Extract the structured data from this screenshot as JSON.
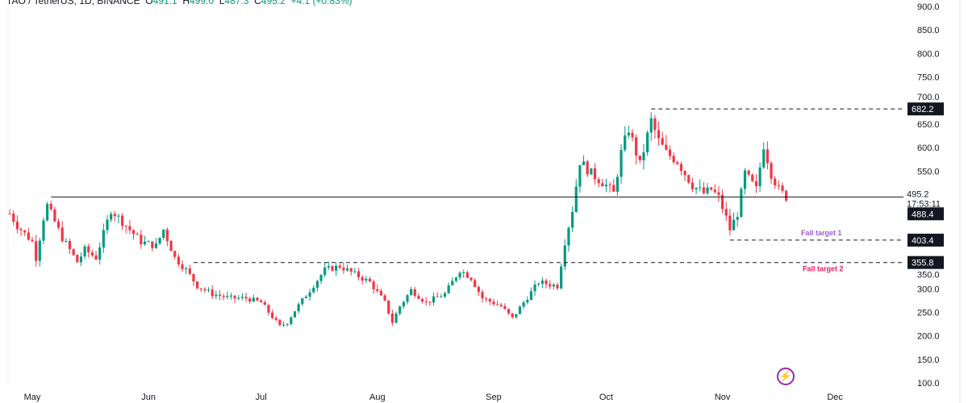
{
  "legend": {
    "symbol": "TAO / TetherUS, 1D, BINANCE",
    "o_label": "O",
    "o": "491.1",
    "h_label": "H",
    "h": "499.0",
    "l_label": "L",
    "l": "487.3",
    "c_label": "C",
    "c": "495.2",
    "change": "+4.1 (+0.83%)"
  },
  "countdown": "17:53:11",
  "colors": {
    "up": "#089981",
    "down": "#f23645",
    "target1": "#9c5fd1",
    "target2": "#e91e63",
    "tag": "#131722"
  },
  "icons": {
    "flash": "lightning-icon"
  },
  "chart_data": {
    "type": "candlestick",
    "title": "TAO / TetherUS, 1D, BINANCE",
    "x_ticks": [
      {
        "label": "May",
        "day": 0
      },
      {
        "label": "Jun",
        "day": 31
      },
      {
        "label": "Jul",
        "day": 61
      },
      {
        "label": "Aug",
        "day": 92
      },
      {
        "label": "Sep",
        "day": 123
      },
      {
        "label": "Oct",
        "day": 153
      },
      {
        "label": "Nov",
        "day": 184
      },
      {
        "label": "Dec",
        "day": 214
      }
    ],
    "y_ticks": [
      "900.0",
      "850.0",
      "800.0",
      "750.0",
      "700.0",
      "650.0",
      "600.0",
      "550.0",
      "350.0",
      "300.0",
      "250.0",
      "200.0",
      "150.0",
      "100.0"
    ],
    "ylim": [
      100,
      900
    ],
    "close_anchors": [
      [
        -6,
        460
      ],
      [
        -4,
        434
      ],
      [
        0,
        400
      ],
      [
        1,
        366
      ],
      [
        3,
        451
      ],
      [
        4,
        477
      ],
      [
        8,
        408
      ],
      [
        12,
        357
      ],
      [
        14,
        383
      ],
      [
        17,
        366
      ],
      [
        19,
        417
      ],
      [
        21,
        468
      ],
      [
        25,
        434
      ],
      [
        29,
        400
      ],
      [
        33,
        391
      ],
      [
        35,
        426
      ],
      [
        38,
        366
      ],
      [
        41,
        340
      ],
      [
        44,
        306
      ],
      [
        48,
        289
      ],
      [
        53,
        280
      ],
      [
        57,
        280
      ],
      [
        61,
        271
      ],
      [
        66,
        220
      ],
      [
        68,
        229
      ],
      [
        70,
        254
      ],
      [
        74,
        297
      ],
      [
        78,
        340
      ],
      [
        82,
        348
      ],
      [
        86,
        331
      ],
      [
        90,
        314
      ],
      [
        94,
        271
      ],
      [
        96,
        229
      ],
      [
        98,
        263
      ],
      [
        101,
        297
      ],
      [
        105,
        271
      ],
      [
        110,
        289
      ],
      [
        114,
        340
      ],
      [
        117,
        323
      ],
      [
        120,
        280
      ],
      [
        125,
        263
      ],
      [
        128,
        237
      ],
      [
        131,
        271
      ],
      [
        135,
        314
      ],
      [
        140,
        306
      ],
      [
        142,
        400
      ],
      [
        144,
        468
      ],
      [
        146,
        571
      ],
      [
        149,
        545
      ],
      [
        153,
        520
      ],
      [
        155,
        503
      ],
      [
        157,
        589
      ],
      [
        159,
        640
      ],
      [
        161,
        589
      ],
      [
        162,
        563
      ],
      [
        165,
        657
      ],
      [
        167,
        614
      ],
      [
        169,
        589
      ],
      [
        172,
        571
      ],
      [
        174,
        545
      ],
      [
        176,
        520
      ],
      [
        179,
        503
      ],
      [
        181,
        511
      ],
      [
        183,
        494
      ],
      [
        185,
        451
      ],
      [
        186,
        426
      ],
      [
        188,
        460
      ],
      [
        190,
        545
      ],
      [
        193,
        511
      ],
      [
        195,
        606
      ],
      [
        197,
        545
      ],
      [
        199,
        511
      ],
      [
        201,
        495
      ]
    ],
    "levels": [
      {
        "name": "current",
        "price": 495.2,
        "label": "495.2",
        "style": "solid",
        "from_day": 5
      },
      {
        "name": "high",
        "price": 682.2,
        "label": "682.2",
        "style": "dashed",
        "from_day": 165
      },
      {
        "name": "last-tag",
        "price": 488.4,
        "label": "488.4",
        "style": "none",
        "from_day": 201
      },
      {
        "name": "fall-target-1",
        "price": 403.4,
        "label": "403.4",
        "style": "dashed",
        "from_day": 186,
        "text": "Fall target 1"
      },
      {
        "name": "fall-target-2",
        "price": 355.8,
        "label": "355.8",
        "style": "dashed",
        "from_day": 43,
        "text": "Fall target 2"
      }
    ]
  }
}
